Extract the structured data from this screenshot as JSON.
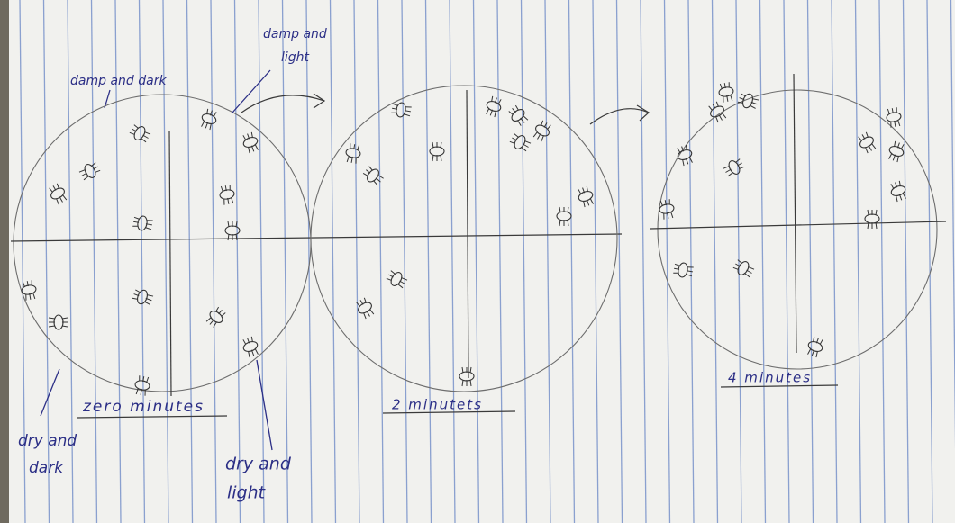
{
  "labels": {
    "damp_dark": [
      "damp and dark"
    ],
    "damp_light": [
      "damp and",
      "light"
    ],
    "dry_dark": [
      "dry and",
      "dark"
    ],
    "dry_light": [
      "dry and",
      "light"
    ]
  },
  "captions": [
    "zero minutes",
    "2 minutets",
    "4 minutes"
  ]
}
